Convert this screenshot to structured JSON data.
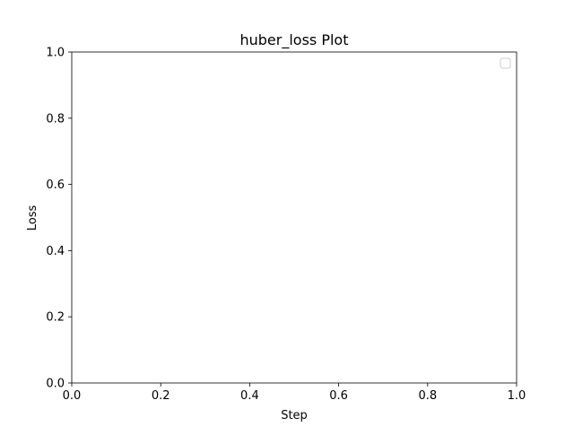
{
  "chart_data": {
    "type": "line",
    "title": "huber_loss Plot",
    "xlabel": "Step",
    "ylabel": "Loss",
    "xlim": [
      0.0,
      1.0
    ],
    "ylim": [
      0.0,
      1.0
    ],
    "x_ticks": [
      0.0,
      0.2,
      0.4,
      0.6,
      0.8,
      1.0
    ],
    "y_ticks": [
      0.0,
      0.2,
      0.4,
      0.6,
      0.8,
      1.0
    ],
    "x_tick_labels": [
      "0.0",
      "0.2",
      "0.4",
      "0.6",
      "0.8",
      "1.0"
    ],
    "y_tick_labels": [
      "0.0",
      "0.2",
      "0.4",
      "0.6",
      "0.8",
      "1.0"
    ],
    "series": [],
    "grid": false,
    "legend_position": "top-right",
    "legend_entries": []
  }
}
